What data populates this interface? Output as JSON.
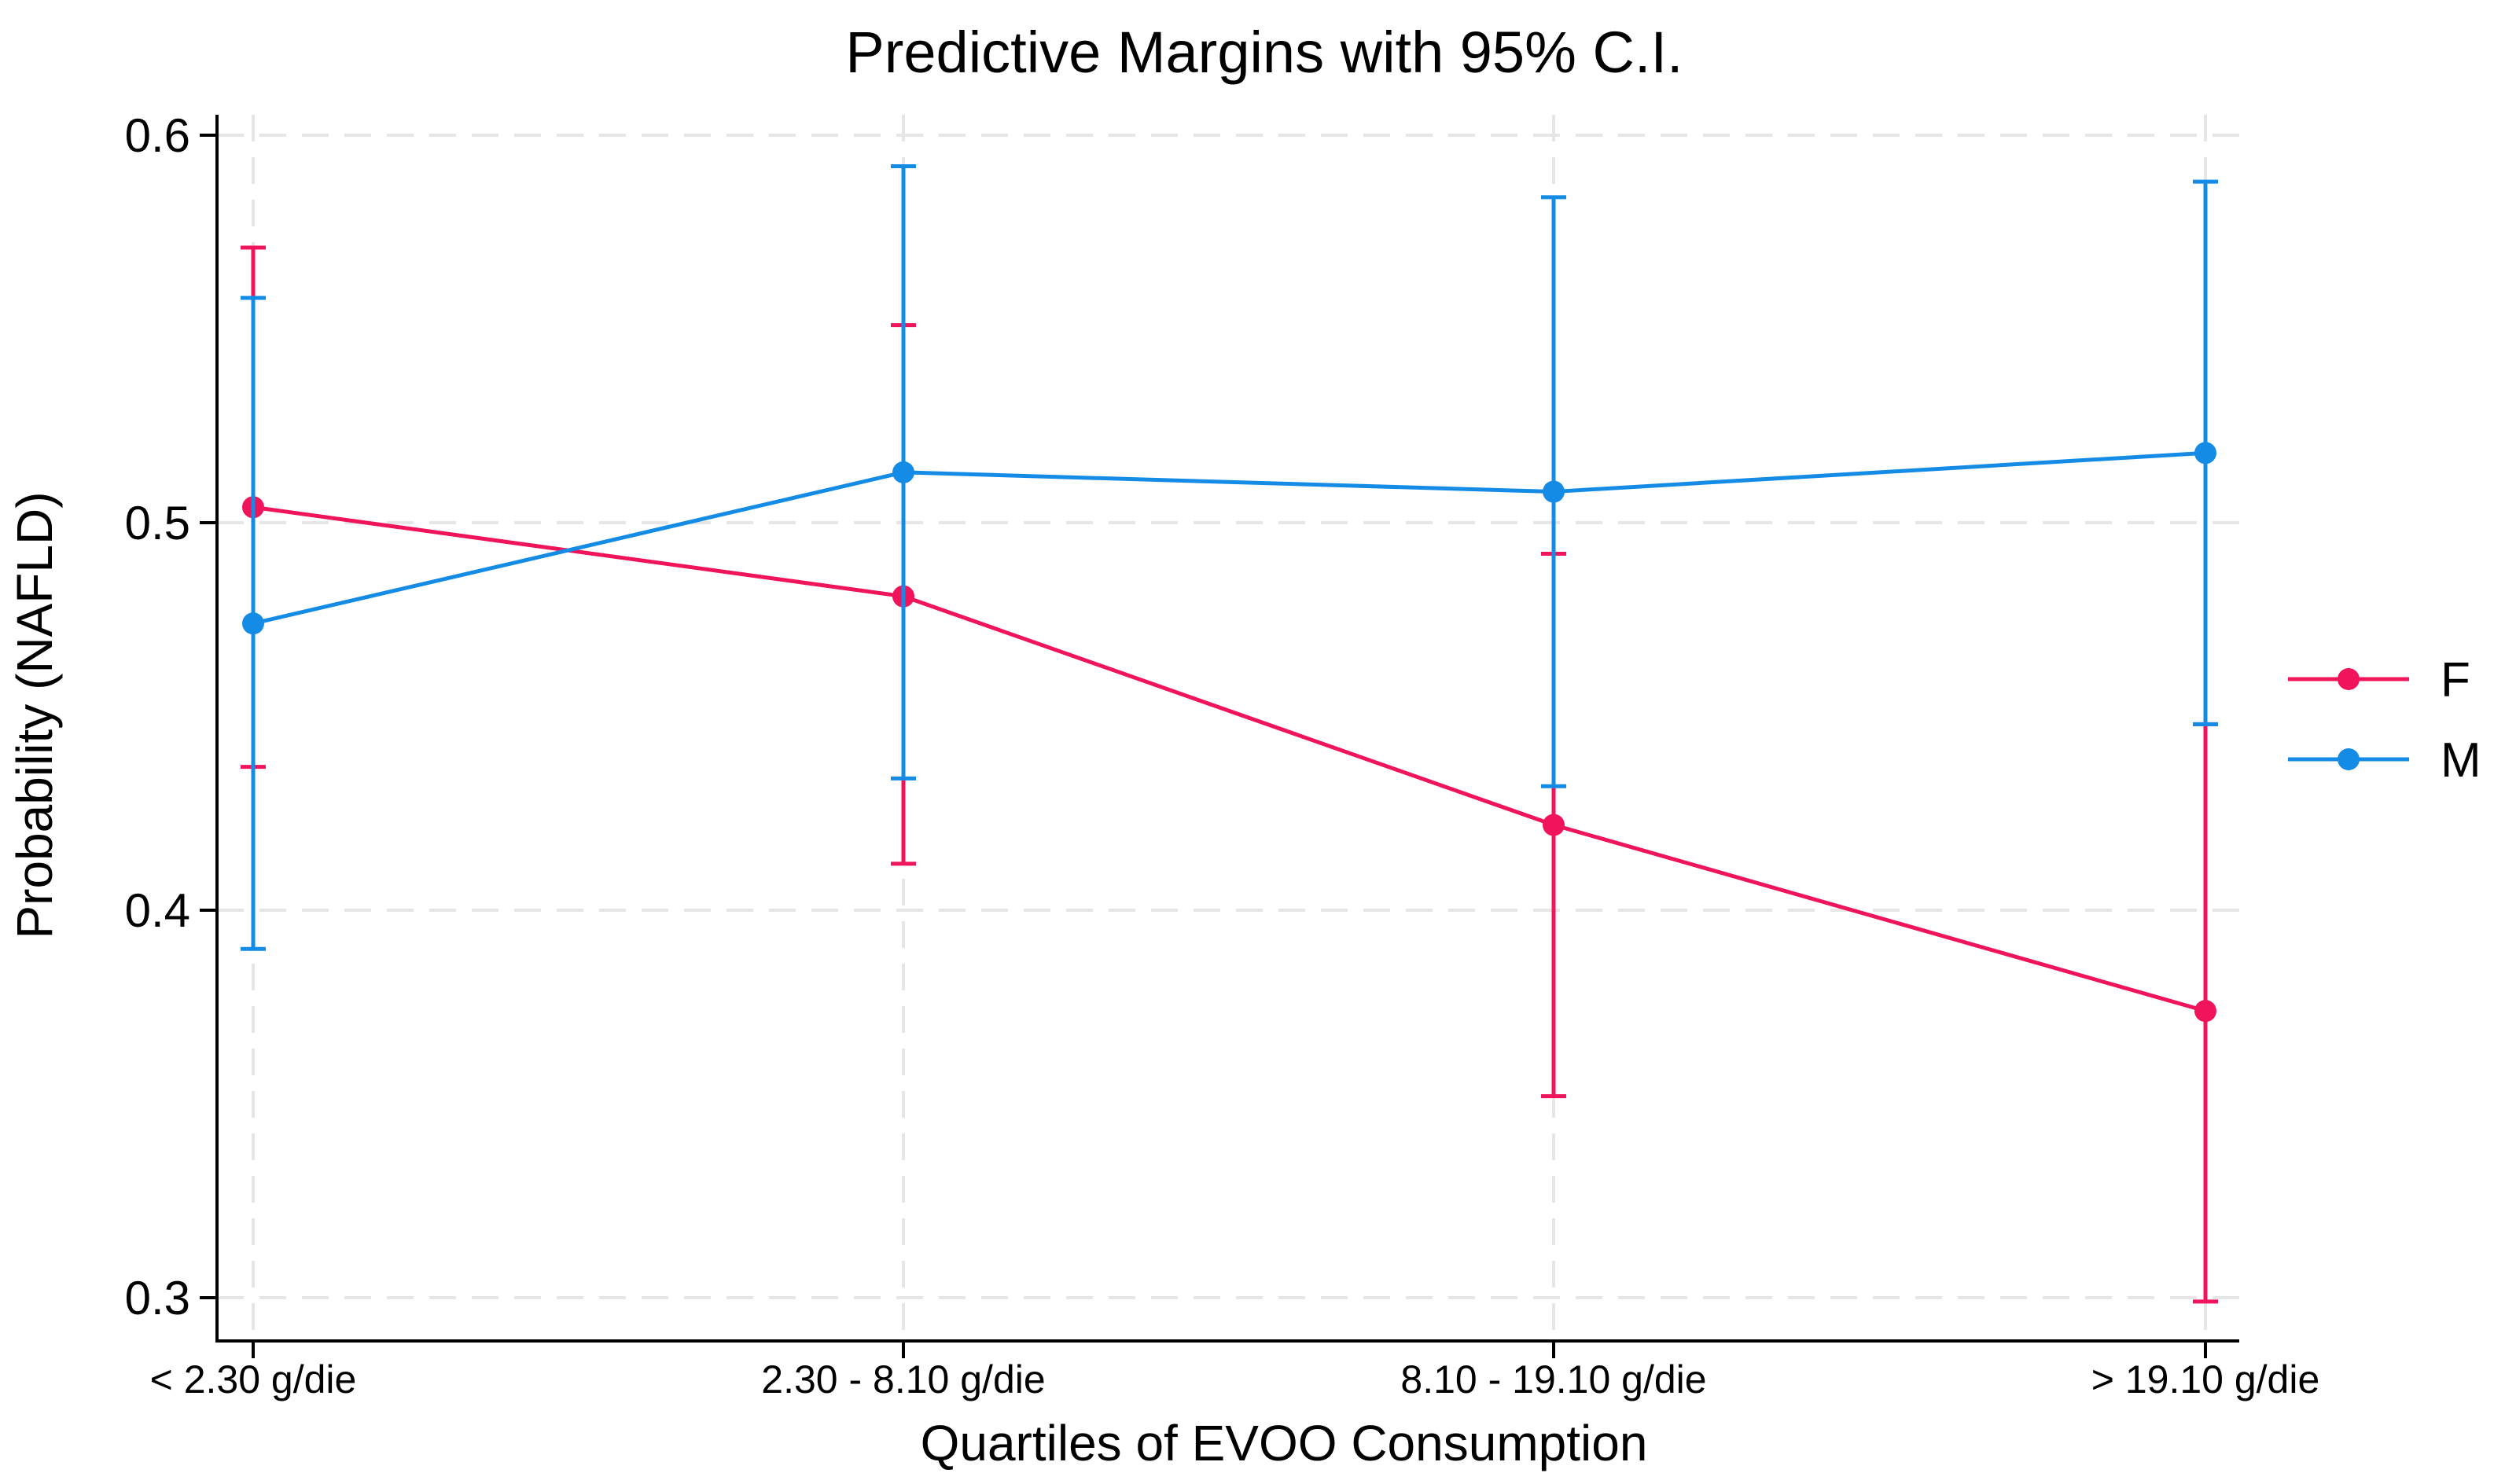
{
  "chart_data": {
    "type": "line",
    "title": "Predictive Margins with 95% C.I.",
    "xlabel": "Quartiles of EVOO Consumption",
    "ylabel": "Probability (NAFLD)",
    "categories": [
      "< 2.30 g/die",
      "2.30 - 8.10 g/die",
      "8.10 - 19.10 g/die",
      "> 19.10 g/die"
    ],
    "ylim": [
      0.3,
      0.6
    ],
    "yticks": [
      "0.3",
      "0.4",
      "0.5",
      "0.6"
    ],
    "grid": true,
    "legend_position": "right",
    "error_bars": "95% C.I.",
    "series": [
      {
        "name": "F",
        "color": "#f0145a",
        "values": [
          0.504,
          0.481,
          0.422,
          0.374
        ],
        "ci_low": [
          0.437,
          0.412,
          0.352,
          0.299
        ],
        "ci_high": [
          0.571,
          0.551,
          0.492,
          0.448
        ]
      },
      {
        "name": "M",
        "color": "#148ce6",
        "values": [
          0.474,
          0.513,
          0.508,
          0.518
        ],
        "ci_low": [
          0.39,
          0.434,
          0.432,
          0.448
        ],
        "ci_high": [
          0.558,
          0.592,
          0.584,
          0.588
        ]
      }
    ]
  }
}
